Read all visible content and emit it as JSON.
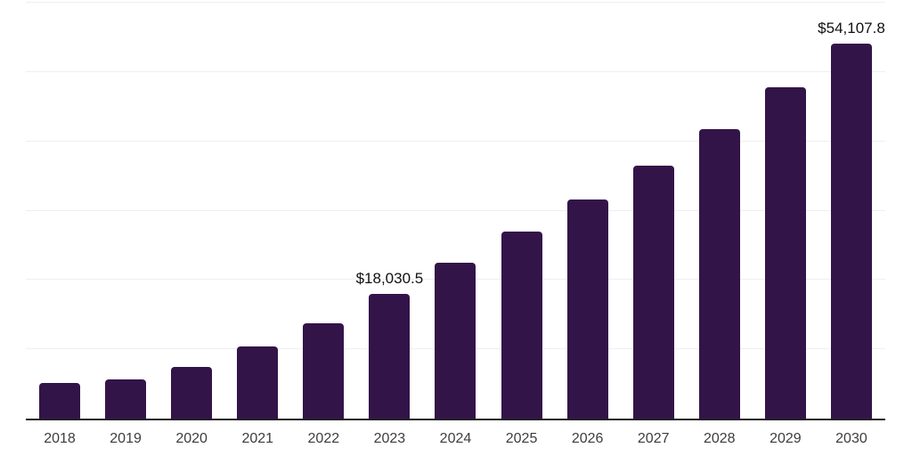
{
  "chart_data": {
    "type": "bar",
    "title": "",
    "xlabel": "",
    "ylabel": "",
    "categories": [
      "2018",
      "2019",
      "2020",
      "2021",
      "2022",
      "2023",
      "2024",
      "2025",
      "2026",
      "2027",
      "2028",
      "2029",
      "2030"
    ],
    "values": [
      5100,
      5600,
      7500,
      10350,
      13700,
      18030.5,
      22450,
      26950,
      31650,
      36500,
      41750,
      47750,
      54107.8
    ],
    "bar_value_labels": [
      "",
      "",
      "",
      "",
      "",
      "$18,030.5",
      "",
      "",
      "",
      "",
      "",
      "",
      "$54,107.8"
    ],
    "ylim": [
      0,
      60000
    ],
    "gridline_interval": 10000,
    "grid": true,
    "legend": false,
    "colors": {
      "bar": "#331449",
      "gridline": "#efefef",
      "axis_line": "#222222",
      "tick_label": "#3d3d3d",
      "data_label": "#111111",
      "background": "#ffffff"
    }
  }
}
